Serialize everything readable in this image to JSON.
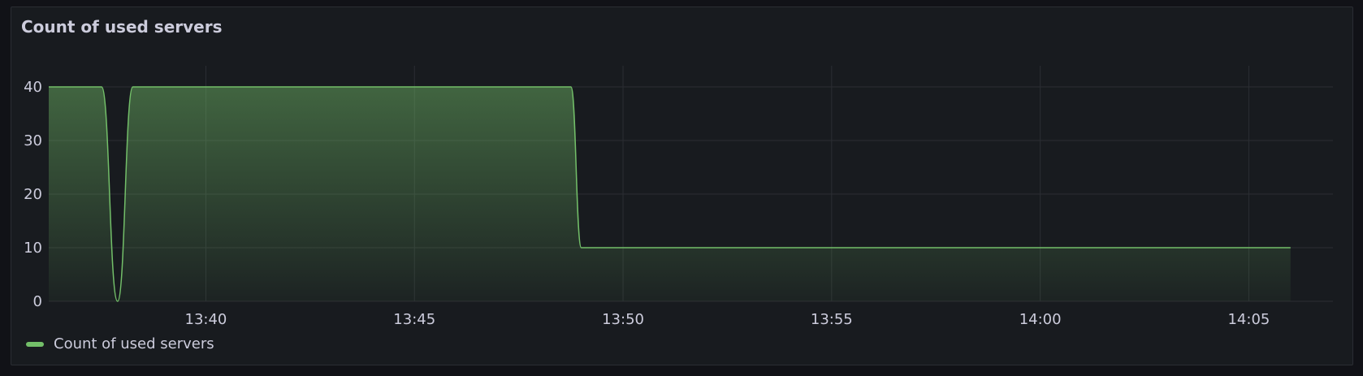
{
  "panel": {
    "title": "Count of used servers"
  },
  "legend": {
    "items": [
      {
        "label": "Count of used servers",
        "color": "#73bf69"
      }
    ]
  },
  "chart_data": {
    "type": "area",
    "title": "Count of used servers",
    "xlabel": "",
    "ylabel": "",
    "x_ticks": [
      "13:40",
      "13:45",
      "13:50",
      "13:55",
      "14:00",
      "14:05"
    ],
    "y_ticks": [
      0,
      10,
      20,
      30,
      40
    ],
    "ylim": [
      0,
      40
    ],
    "xlim": [
      "13:36:14",
      "14:07:01"
    ],
    "grid": true,
    "legend_position": "bottom-left",
    "series": [
      {
        "name": "Count of used servers",
        "color": "#73bf69",
        "points": [
          {
            "x": "13:36:14",
            "y": 40
          },
          {
            "x": "13:37:30",
            "y": 40
          },
          {
            "x": "13:37:53",
            "y": 0
          },
          {
            "x": "13:38:15",
            "y": 40
          },
          {
            "x": "13:48:45",
            "y": 40
          },
          {
            "x": "13:49:00",
            "y": 10
          },
          {
            "x": "14:06:00",
            "y": 10
          }
        ]
      }
    ]
  }
}
